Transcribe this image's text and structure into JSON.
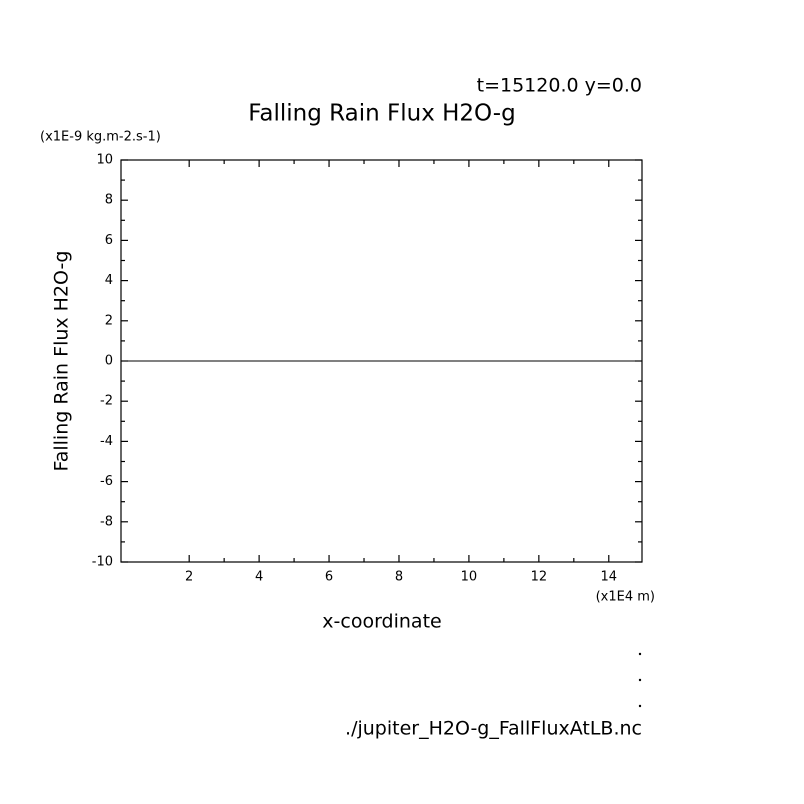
{
  "chart_data": {
    "type": "line",
    "title": "Falling Rain Flux H2O-g",
    "subtitle": "t=15120.0 y=0.0",
    "y_unit": "(x1E-9 kg.m-2.s-1)",
    "x_unit": "(x1E4 m)",
    "xlabel": "x-coordinate",
    "ylabel": "Falling Rain Flux H2O-g",
    "footer": "./jupiter_H2O-g_FallFluxAtLB.nc",
    "x": [
      0.05,
      14.95
    ],
    "series": [
      {
        "name": "Falling Rain Flux H2O-g",
        "color": "#000000",
        "values": [
          0,
          0
        ]
      }
    ],
    "xlim": [
      0.05,
      14.95
    ],
    "xticks": [
      2,
      4,
      6,
      8,
      10,
      12,
      14
    ],
    "ylim": [
      -10,
      10
    ],
    "yticks": [
      -10,
      -8,
      -6,
      -4,
      -2,
      0,
      2,
      4,
      6,
      8,
      10
    ]
  }
}
